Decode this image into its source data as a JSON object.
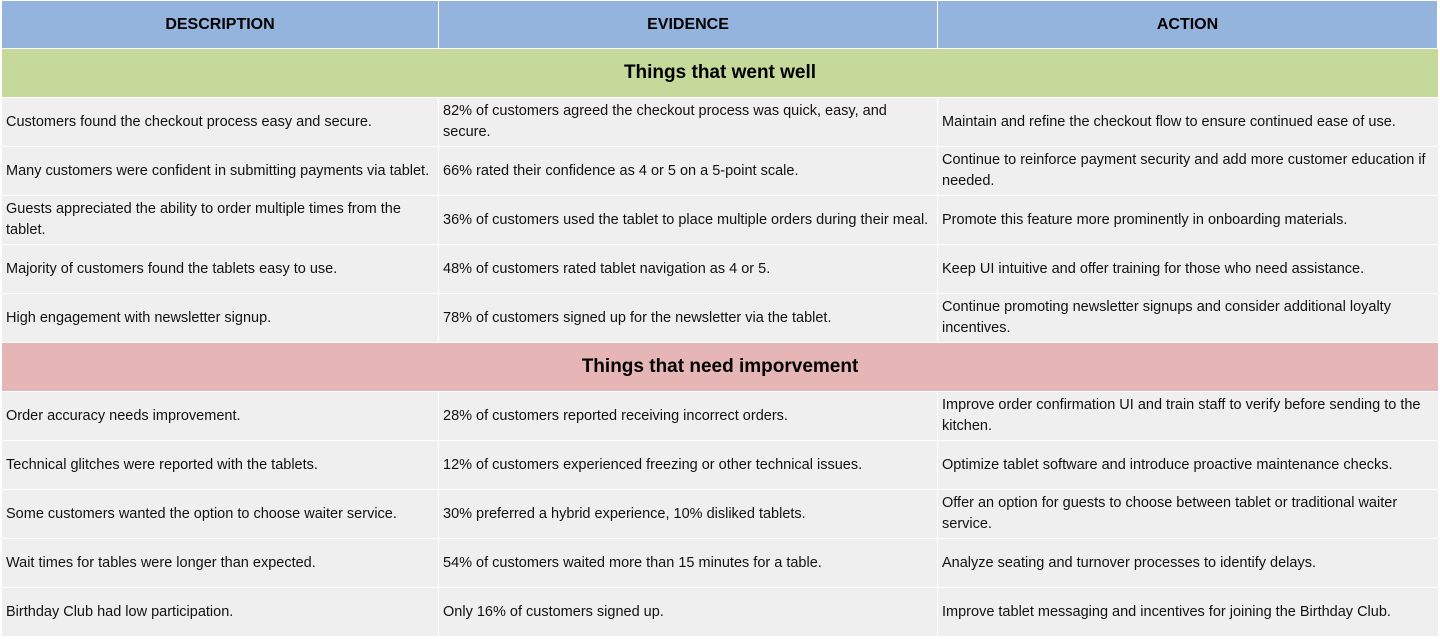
{
  "header": {
    "description": "DESCRIPTION",
    "evidence": "EVIDENCE",
    "action": "ACTION"
  },
  "sections": [
    {
      "title": "Things that went well",
      "color": "#c5d99b",
      "rows": [
        {
          "description": "Customers found the checkout process easy and secure.",
          "evidence": "82% of customers agreed the checkout process was quick, easy, and secure.",
          "action": "Maintain and refine the checkout flow to ensure continued ease of use."
        },
        {
          "description": "Many customers were confident in submitting payments via tablet.",
          "evidence": "66% rated their confidence as 4 or 5 on a 5-point scale.",
          "action": "Continue to reinforce payment security and add more customer education if needed."
        },
        {
          "description": "Guests appreciated the ability to order multiple times from the tablet.",
          "evidence": "36% of customers used the tablet to place multiple orders during their meal.",
          "action": "Promote this feature more prominently in onboarding materials."
        },
        {
          "description": "Majority of customers found the tablets easy to use.",
          "evidence": "48% of customers rated tablet navigation as 4 or 5.",
          "action": "Keep UI intuitive and offer training for those who need assistance."
        },
        {
          "description": "High engagement with newsletter signup.",
          "evidence": "78% of customers signed up for the newsletter via the tablet.",
          "action": "Continue promoting newsletter signups and consider additional loyalty incentives."
        }
      ]
    },
    {
      "title": "Things that need imporvement",
      "color": "#e6b5b6",
      "rows": [
        {
          "description": "Order accuracy needs improvement.",
          "evidence": "28% of customers reported receiving incorrect orders.",
          "action": "Improve order confirmation UI and train staff to verify before sending to the kitchen."
        },
        {
          "description": "Technical glitches were reported with the tablets.",
          "evidence": "12% of customers experienced freezing or other technical issues.",
          "action": "Optimize tablet software and introduce proactive maintenance checks."
        },
        {
          "description": "Some customers wanted the option to choose waiter service.",
          "evidence": "30% preferred a hybrid experience, 10% disliked tablets.",
          "action": "Offer an option for guests to choose between tablet or traditional waiter service."
        },
        {
          "description": "Wait times for tables were longer than expected.",
          "evidence": "54% of customers waited more than 15 minutes for a table.",
          "action": "Analyze seating and turnover processes to identify delays."
        },
        {
          "description": "Birthday Club had low participation.",
          "evidence": "Only 16% of customers signed up.",
          "action": "Improve tablet messaging and incentives for joining the Birthday Club."
        }
      ]
    }
  ],
  "colors": {
    "header_bg": "#94b4dd",
    "cell_bg": "#efefef"
  }
}
